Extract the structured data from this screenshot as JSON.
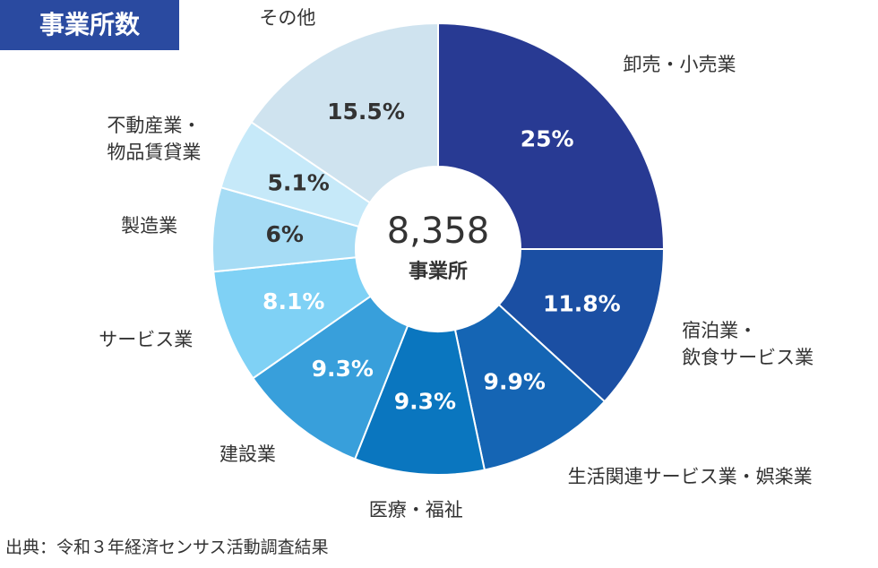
{
  "chart_data": {
    "type": "donut",
    "title": "事業所数",
    "categories": [
      "卸売・小売業",
      "宿泊業・\n飲食サービス業",
      "生活関連サービス業・娯楽業",
      "医療・福祉",
      "建設業",
      "サービス業",
      "製造業",
      "不動産業・\n物品賃貸業",
      "その他"
    ],
    "values": [
      25,
      11.8,
      9.9,
      9.3,
      9.3,
      8.1,
      6,
      5.1,
      15.5
    ],
    "value_labels": [
      "25%",
      "11.8%",
      "9.9%",
      "9.3%",
      "9.3%",
      "8.1%",
      "6%",
      "5.1%",
      "15.5%"
    ],
    "colors": [
      "#283a93",
      "#1b4fa3",
      "#1565b4",
      "#0a76bf",
      "#389fdb",
      "#7fd1f5",
      "#a6dcf5",
      "#c6e9f9",
      "#cfe3ef"
    ],
    "label_colors": [
      "#ffffff",
      "#ffffff",
      "#ffffff",
      "#ffffff",
      "#ffffff",
      "#ffffff",
      "#333333",
      "#333333",
      "#333333"
    ],
    "center_text": "8,358",
    "center_caption": "事業所",
    "source": "出典：令和３年経済センサス活動調査結果"
  }
}
